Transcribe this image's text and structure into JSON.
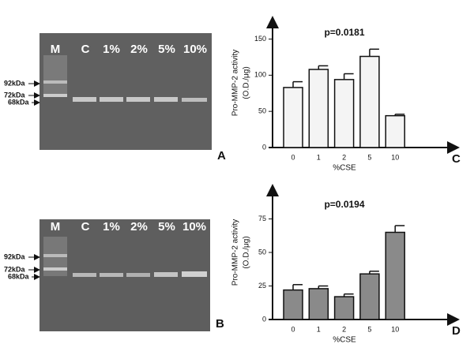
{
  "gels": [
    {
      "lanes": [
        "M",
        "C",
        "1%",
        "2%",
        "5%",
        "10%"
      ],
      "markers": [
        "92kDa",
        "72kDa",
        "68kDa"
      ],
      "panel": "A"
    },
    {
      "lanes": [
        "M",
        "C",
        "1%",
        "2%",
        "5%",
        "10%"
      ],
      "markers": [
        "92kDa",
        "72kDa",
        "68kDa"
      ],
      "panel": "B"
    }
  ],
  "chart_data": [
    {
      "type": "bar",
      "title": "p=0.0181",
      "ylabel": [
        "Pro-MMP-2 activity",
        "(O.D./μg)"
      ],
      "xlabel": "%CSE",
      "panel": "C",
      "categories": [
        "0",
        "1",
        "2",
        "5",
        "10"
      ],
      "values": [
        83,
        108,
        94,
        126,
        44
      ],
      "errors": [
        8,
        5,
        8,
        10,
        2
      ],
      "color": "#f4f4f4",
      "ylim": [
        0,
        180
      ],
      "yticks": [
        0,
        50,
        100,
        150
      ]
    },
    {
      "type": "bar",
      "title": "p=0.0194",
      "ylabel": [
        "Pro-MMP-2 activity",
        "(O.D./μg)"
      ],
      "xlabel": "%CSE",
      "panel": "D",
      "categories": [
        "0",
        "1",
        "2",
        "5",
        "10"
      ],
      "values": [
        22,
        23,
        17,
        34,
        65
      ],
      "errors": [
        4,
        2,
        2,
        2,
        5
      ],
      "color": "#8a8a8a",
      "ylim": [
        0,
        100
      ],
      "yticks": [
        0,
        25,
        50,
        75
      ]
    }
  ]
}
